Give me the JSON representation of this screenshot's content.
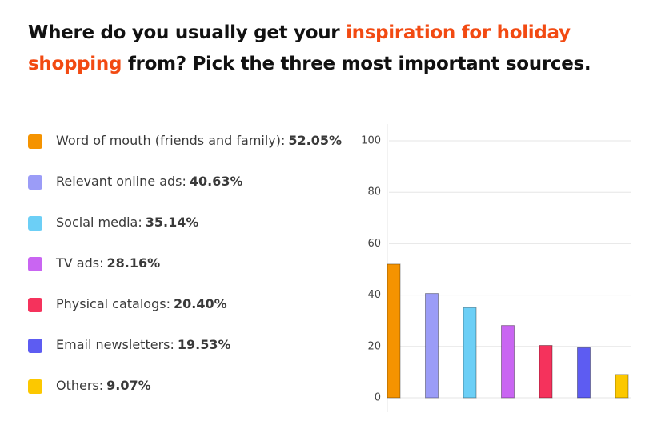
{
  "chart_data": {
    "type": "bar",
    "title_parts": [
      {
        "text": "Where do you usually get your ",
        "color": "#111111"
      },
      {
        "text": "inspiration for holiday",
        "color": "#f24a12"
      },
      {
        "text": "shopping",
        "color": "#f24a12"
      },
      {
        "text": " from? Pick the three most important sources.",
        "color": "#111111"
      }
    ],
    "categories": [
      "Word of mouth (friends and family):",
      "Relevant online ads:",
      "Social media:",
      "TV ads:",
      "Physical catalogs:",
      "Email newsletters:",
      "Others:"
    ],
    "values": [
      52.05,
      40.63,
      35.14,
      28.16,
      20.4,
      19.53,
      9.07
    ],
    "value_labels": [
      "52.05%",
      "40.63%",
      "35.14%",
      "28.16%",
      "20.40%",
      "19.53%",
      "9.07%"
    ],
    "colors": [
      "#f59300",
      "#9b9cf7",
      "#6ccff6",
      "#c965f2",
      "#f5325c",
      "#5d5cf2",
      "#fcc800"
    ],
    "ylim": [
      0,
      100
    ],
    "yticks": [
      0,
      20,
      40,
      60,
      80,
      100
    ],
    "grid": true
  }
}
